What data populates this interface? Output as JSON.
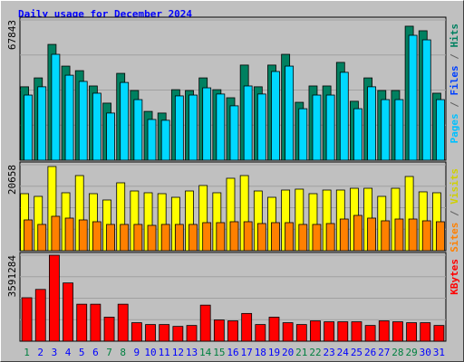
{
  "chart_data": {
    "type": "bar",
    "title": "Daily usage for December 2024",
    "categories": [
      1,
      2,
      3,
      4,
      5,
      6,
      7,
      8,
      9,
      10,
      11,
      12,
      13,
      14,
      15,
      16,
      17,
      18,
      19,
      20,
      21,
      22,
      23,
      24,
      25,
      26,
      27,
      28,
      29,
      30,
      31
    ],
    "weekends": [
      1,
      7,
      8,
      14,
      15,
      21,
      22,
      28,
      29
    ],
    "weekend_color": "#008040",
    "weekday_color": "#0000ff",
    "panels": [
      {
        "ylim": [
          0,
          67843
        ],
        "yticks": [
          67843
        ],
        "label": [
          {
            "text": "Pages",
            "color": "#00c0ff"
          },
          {
            "text": " / ",
            "color": "#606060"
          },
          {
            "text": "Files",
            "color": "#0040ff"
          },
          {
            "text": " / ",
            "color": "#606060"
          },
          {
            "text": "Hits",
            "color": "#008060"
          }
        ],
        "series": [
          {
            "name": "Hits",
            "color": "#008060",
            "values": [
              35500,
              39800,
              56000,
              45500,
              43300,
              35900,
              27600,
              42000,
              33700,
              23600,
              22800,
              34100,
              33700,
              39800,
              34100,
              30200,
              46000,
              35500,
              46000,
              51200,
              28000,
              35900,
              35900,
              47300,
              28500,
              39800,
              33700,
              33700,
              64800,
              62600,
              32400
            ]
          },
          {
            "name": "Files",
            "color": "#00d8ff",
            "values": [
              31500,
              35500,
              51200,
              41100,
              38100,
              32400,
              22800,
              37600,
              29300,
              19700,
              19300,
              31100,
              31500,
              35000,
              32000,
              26300,
              35900,
              32000,
              42900,
              45500,
              24900,
              31500,
              31500,
              42500,
              24900,
              35500,
              29300,
              29300,
              60400,
              58200,
              29300
            ]
          }
        ]
      },
      {
        "ylim": [
          0,
          20658
        ],
        "yticks": [
          20658
        ],
        "label": [
          {
            "text": "Sites",
            "color": "#ff8000"
          },
          {
            "text": " / ",
            "color": "#606060"
          },
          {
            "text": "Visits",
            "color": "#d0d000"
          }
        ],
        "series": [
          {
            "name": "Visits",
            "color": "#ffff00",
            "values": [
              13700,
              13050,
              20225,
              13920,
              18050,
              13700,
              12180,
              16310,
              14350,
              13920,
              13700,
              12830,
              14350,
              15660,
              13920,
              17400,
              18050,
              14350,
              12830,
              14570,
              14790,
              13700,
              14570,
              14570,
              15000,
              15000,
              13050,
              15000,
              17830,
              14140,
              13920
            ]
          },
          {
            "name": "Sites",
            "color": "#ff8000",
            "values": [
              7395,
              6310,
              8265,
              7830,
              7395,
              6960,
              6310,
              6310,
              6310,
              6090,
              6310,
              6310,
              6310,
              6740,
              6740,
              6960,
              6960,
              6525,
              6740,
              6740,
              6310,
              6310,
              6525,
              7610,
              8480,
              7830,
              7180,
              7610,
              7610,
              7180,
              6960
            ]
          }
        ]
      },
      {
        "ylim": [
          0,
          3591284
        ],
        "yticks": [
          3591284
        ],
        "label": [
          {
            "text": "KBytes",
            "color": "#ff0000"
          }
        ],
        "series": [
          {
            "name": "KBytes",
            "color": "#ff0000",
            "values": [
              1815000,
              2162500,
              3591284,
              2432800,
              1544600,
              1544600,
              1004000,
              1544600,
              772300,
              695100,
              695100,
              617900,
              656500,
              1506000,
              888200,
              849600,
              1158500,
              695100,
              1004000,
              772300,
              695100,
              849600,
              811000,
              811000,
              811000,
              656500,
              849600,
              811000,
              772300,
              772300,
              656500
            ]
          }
        ]
      }
    ]
  }
}
